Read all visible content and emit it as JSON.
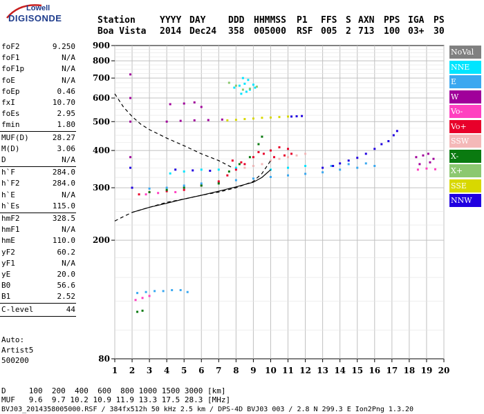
{
  "logo": {
    "top": "Lowell",
    "bottom": "DIGISONDE"
  },
  "header": {
    "labels": [
      "Station",
      "YYYY",
      "DAY",
      "DDD",
      "HHMMSS",
      "P1",
      "FFS",
      "S",
      "AXN",
      "PPS",
      "IGA",
      "PS"
    ],
    "values": [
      "Boa Vista",
      "2014",
      "Dec24",
      "358",
      "005000",
      "RSF",
      "005",
      "2",
      "713",
      "100",
      "03+",
      "30"
    ]
  },
  "params": [
    {
      "name": "foF2",
      "value": "9.250"
    },
    {
      "name": "foF1",
      "value": "N/A"
    },
    {
      "name": "foF1p",
      "value": "N/A"
    },
    {
      "name": "foE",
      "value": "N/A"
    },
    {
      "name": "foEp",
      "value": "0.46"
    },
    {
      "name": "fxI",
      "value": "10.70"
    },
    {
      "name": "foEs",
      "value": "2.95"
    },
    {
      "name": "fmin",
      "value": "1.80"
    },
    {
      "name": "MUF(D)",
      "value": "28.27"
    },
    {
      "name": "M(D)",
      "value": "3.06"
    },
    {
      "name": "D",
      "value": "N/A"
    },
    {
      "name": "h`F",
      "value": "284.0"
    },
    {
      "name": "h`F2",
      "value": "284.0"
    },
    {
      "name": "h`E",
      "value": "N/A"
    },
    {
      "name": "h`Es",
      "value": "115.0"
    },
    {
      "name": "hmF2",
      "value": "328.5"
    },
    {
      "name": "hmF1",
      "value": "N/A"
    },
    {
      "name": "hmE",
      "value": "110.0"
    },
    {
      "name": "yF2",
      "value": "60.2"
    },
    {
      "name": "yF1",
      "value": "N/A"
    },
    {
      "name": "yE",
      "value": "20.0"
    },
    {
      "name": "B0",
      "value": "56.6"
    },
    {
      "name": "B1",
      "value": "2.52"
    },
    {
      "name": "C-level",
      "value": "44"
    }
  ],
  "auto": [
    "Auto:",
    "Artist5",
    "500200"
  ],
  "legend": [
    {
      "label": "NoVal",
      "color": "#808080",
      "text_color": "#ffffff"
    },
    {
      "label": "NNE",
      "color": "#00e5ff",
      "text_color": "#ffffff"
    },
    {
      "label": "E",
      "color": "#3aa8f0",
      "text_color": "#ffffff"
    },
    {
      "label": "W",
      "color": "#a0009a",
      "text_color": "#ffffff"
    },
    {
      "label": "Vo-",
      "color": "#ff40c0",
      "text_color": "#ffffff"
    },
    {
      "label": "Vo+",
      "color": "#e8002a",
      "text_color": "#ffffff"
    },
    {
      "label": "SSW",
      "color": "#f4b8b8",
      "text_color": "#ffffff"
    },
    {
      "label": "X-",
      "color": "#0a7a10",
      "text_color": "#ffffff"
    },
    {
      "label": "X+",
      "color": "#8cc870",
      "text_color": "#ffffff"
    },
    {
      "label": "SSE",
      "color": "#d8d800",
      "text_color": "#ffffff"
    },
    {
      "label": "NNW",
      "color": "#2000e0",
      "text_color": "#ffffff"
    }
  ],
  "footer": {
    "d_line": "D     100  200  400  600  800 1000 1500 3000 [km]",
    "muf_line": "MUF   9.6  9.7 10.2 10.9 11.9 13.3 17.5 28.3 [MHz]",
    "file_line": "BVJ03_2014358005000.RSF / 384fx512h 50 kHz 2.5 km / DPS-4D BVJ03 003 / 2.8 N 299.3 E Ion2Png 1.3.20"
  },
  "chart_data": {
    "type": "scatter",
    "title": "",
    "xlabel": "",
    "ylabel": "",
    "xlim": [
      1,
      20
    ],
    "ylim": [
      80,
      900
    ],
    "x_ticks": [
      1,
      2,
      3,
      4,
      5,
      6,
      7,
      8,
      9,
      10,
      11,
      12,
      13,
      14,
      15,
      16,
      17,
      18,
      19,
      20
    ],
    "y_ticks": [
      80,
      200,
      300,
      400,
      500,
      600,
      700,
      800,
      900
    ],
    "y_scale": "log",
    "grid": true,
    "series": [
      {
        "name": "NNE",
        "color": "#00e5ff",
        "points": [
          [
            7.9,
            650
          ],
          [
            8.2,
            660
          ],
          [
            8.5,
            670
          ],
          [
            8.8,
            640
          ],
          [
            9.1,
            650
          ],
          [
            8.3,
            620
          ],
          [
            8.6,
            630
          ],
          [
            9.0,
            665
          ],
          [
            8.4,
            700
          ],
          [
            8.7,
            690
          ],
          [
            4.2,
            335
          ],
          [
            5.0,
            340
          ],
          [
            6.0,
            345
          ],
          [
            7.0,
            345
          ],
          [
            8.0,
            350
          ],
          [
            9.0,
            355
          ],
          [
            10.0,
            345
          ],
          [
            11.0,
            350
          ],
          [
            12.0,
            355
          ]
        ]
      },
      {
        "name": "E",
        "color": "#3aa8f0",
        "points": [
          [
            2.3,
            133
          ],
          [
            2.8,
            134
          ],
          [
            3.3,
            135
          ],
          [
            3.8,
            135
          ],
          [
            4.3,
            136
          ],
          [
            4.8,
            136
          ],
          [
            5.2,
            134
          ],
          [
            3.0,
            298
          ],
          [
            4.0,
            300
          ],
          [
            5.0,
            305
          ],
          [
            6.0,
            310
          ],
          [
            7.0,
            312
          ],
          [
            8.0,
            318
          ],
          [
            9.0,
            322
          ],
          [
            10.0,
            326
          ],
          [
            11.0,
            330
          ],
          [
            12.0,
            334
          ],
          [
            13.0,
            338
          ],
          [
            14.0,
            345
          ],
          [
            15.0,
            350
          ],
          [
            16.0,
            355
          ],
          [
            13.5,
            355
          ],
          [
            14.5,
            360
          ],
          [
            15.5,
            362
          ]
        ]
      },
      {
        "name": "W",
        "color": "#a0009a",
        "points": [
          [
            1.9,
            720
          ],
          [
            1.9,
            600
          ],
          [
            1.9,
            500
          ],
          [
            1.9,
            380
          ],
          [
            4.2,
            572
          ],
          [
            5.0,
            575
          ],
          [
            5.6,
            580
          ],
          [
            6.0,
            560
          ],
          [
            4.0,
            500
          ],
          [
            4.8,
            503
          ],
          [
            5.6,
            505
          ],
          [
            6.4,
            506
          ],
          [
            7.2,
            508
          ],
          [
            18.4,
            380
          ],
          [
            18.8,
            385
          ],
          [
            19.1,
            390
          ],
          [
            19.4,
            375
          ],
          [
            18.6,
            360
          ],
          [
            19.2,
            365
          ]
        ]
      },
      {
        "name": "Vo-",
        "color": "#ff40c0",
        "points": [
          [
            2.2,
            126
          ],
          [
            2.6,
            128
          ],
          [
            3.0,
            130
          ],
          [
            18.5,
            345
          ],
          [
            19.0,
            348
          ],
          [
            19.5,
            346
          ],
          [
            2.8,
            285
          ],
          [
            3.5,
            288
          ],
          [
            4.5,
            290
          ]
        ]
      },
      {
        "name": "Vo+",
        "color": "#e8002a",
        "points": [
          [
            2.4,
            285
          ],
          [
            3.0,
            290
          ],
          [
            4.0,
            292
          ],
          [
            5.0,
            295
          ],
          [
            6.0,
            305
          ],
          [
            7.0,
            315
          ],
          [
            7.5,
            330
          ],
          [
            8.0,
            345
          ],
          [
            8.5,
            360
          ],
          [
            9.0,
            380
          ],
          [
            9.3,
            395
          ],
          [
            9.6,
            390
          ],
          [
            10.0,
            400
          ],
          [
            10.5,
            410
          ],
          [
            11.0,
            405
          ],
          [
            10.2,
            380
          ],
          [
            10.8,
            385
          ],
          [
            11.2,
            390
          ],
          [
            7.8,
            370
          ],
          [
            8.3,
            365
          ]
        ]
      },
      {
        "name": "SSW",
        "color": "#f4b8b8",
        "points": [
          [
            8.5,
            350
          ],
          [
            9.0,
            355
          ],
          [
            9.5,
            360
          ],
          [
            10.0,
            370
          ],
          [
            10.5,
            375
          ],
          [
            11.0,
            380
          ],
          [
            11.5,
            385
          ],
          [
            12.0,
            390
          ]
        ]
      },
      {
        "name": "X-",
        "color": "#0a7a10",
        "points": [
          [
            2.3,
            115
          ],
          [
            2.6,
            116
          ],
          [
            3.0,
            290
          ],
          [
            4.0,
            295
          ],
          [
            5.0,
            300
          ],
          [
            6.0,
            305
          ],
          [
            7.0,
            310
          ],
          [
            7.6,
            340
          ],
          [
            8.2,
            360
          ],
          [
            8.8,
            380
          ],
          [
            9.3,
            420
          ],
          [
            9.5,
            445
          ]
        ]
      },
      {
        "name": "X+",
        "color": "#8cc870",
        "points": [
          [
            7.6,
            675
          ],
          [
            8.0,
            660
          ],
          [
            8.4,
            640
          ],
          [
            8.8,
            645
          ],
          [
            9.2,
            655
          ]
        ]
      },
      {
        "name": "SSE",
        "color": "#d8d800",
        "points": [
          [
            7.5,
            505
          ],
          [
            8.0,
            507
          ],
          [
            8.5,
            510
          ],
          [
            9.0,
            512
          ],
          [
            9.5,
            515
          ],
          [
            10.0,
            516
          ],
          [
            10.5,
            518
          ],
          [
            11.0,
            520
          ]
        ]
      },
      {
        "name": "NNW",
        "color": "#2000e0",
        "points": [
          [
            1.9,
            350
          ],
          [
            2.0,
            300
          ],
          [
            11.2,
            520
          ],
          [
            11.5,
            521
          ],
          [
            11.8,
            522
          ],
          [
            13.0,
            350
          ],
          [
            13.6,
            355
          ],
          [
            14.0,
            362
          ],
          [
            14.5,
            370
          ],
          [
            15.0,
            378
          ],
          [
            15.5,
            390
          ],
          [
            16.0,
            405
          ],
          [
            16.4,
            420
          ],
          [
            16.8,
            430
          ],
          [
            17.1,
            450
          ],
          [
            17.3,
            465
          ],
          [
            4.5,
            345
          ],
          [
            5.5,
            343
          ],
          [
            6.5,
            342
          ]
        ]
      }
    ],
    "curves": [
      {
        "style": "dashed",
        "points": [
          [
            1.0,
            620
          ],
          [
            1.5,
            560
          ],
          [
            2.0,
            520
          ],
          [
            2.5,
            490
          ],
          [
            3.0,
            470
          ],
          [
            4.0,
            440
          ],
          [
            5.0,
            415
          ],
          [
            6.0,
            390
          ],
          [
            7.0,
            370
          ],
          [
            7.8,
            350
          ]
        ]
      },
      {
        "style": "dashed",
        "points": [
          [
            1.0,
            232
          ],
          [
            1.5,
            240
          ],
          [
            2.0,
            248
          ],
          [
            3.0,
            258
          ],
          [
            4.0,
            268
          ],
          [
            5.0,
            275
          ],
          [
            6.0,
            283
          ],
          [
            7.0,
            290
          ],
          [
            8.0,
            300
          ],
          [
            9.0,
            315
          ],
          [
            9.5,
            335
          ],
          [
            10.0,
            370
          ]
        ]
      },
      {
        "style": "solid",
        "points": [
          [
            2.0,
            248
          ],
          [
            3.0,
            258
          ],
          [
            4.0,
            266
          ],
          [
            5.0,
            275
          ],
          [
            6.0,
            283
          ],
          [
            7.0,
            292
          ],
          [
            8.0,
            302
          ],
          [
            9.0,
            313
          ],
          [
            9.5,
            325
          ],
          [
            10.0,
            345
          ]
        ]
      }
    ]
  }
}
